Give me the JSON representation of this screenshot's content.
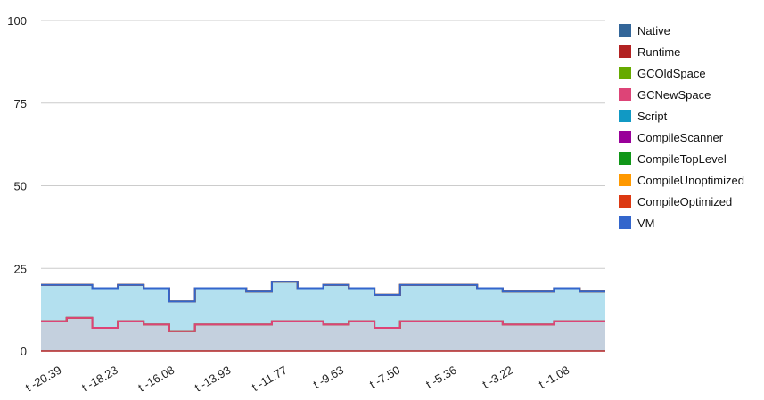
{
  "chart_data": {
    "type": "area",
    "stacked": true,
    "step": true,
    "y_ticks": [
      "100",
      "75",
      "50",
      "25",
      "0"
    ],
    "ylim": [
      0,
      100
    ],
    "x_tick_labels": [
      "t -20.39",
      "t -18.23",
      "t -16.08",
      "t -13.93",
      "t -11.77",
      "t -9.63",
      "t -7.50",
      "t -5.36",
      "t -3.22",
      "t -1.08"
    ],
    "grid": true,
    "legend_position": "right",
    "series": [
      {
        "name": "Native",
        "color": "#336699",
        "values": [
          9,
          10,
          7,
          9,
          8,
          6,
          8,
          8,
          8,
          9,
          9,
          8,
          9,
          7,
          9,
          9,
          9,
          9,
          8,
          8,
          9,
          9
        ]
      },
      {
        "name": "Runtime",
        "color": "#b22222",
        "values": [
          0,
          0,
          0,
          0,
          0,
          0,
          0,
          0,
          0,
          0,
          0,
          0,
          0,
          0,
          0,
          0,
          0,
          0,
          0,
          0,
          0,
          0
        ]
      },
      {
        "name": "GCOldSpace",
        "color": "#66aa00",
        "values": [
          0,
          0,
          0,
          0,
          0,
          0,
          0,
          0,
          0,
          0,
          0,
          0,
          0,
          0,
          0,
          0,
          0,
          0,
          0,
          0,
          0,
          0
        ]
      },
      {
        "name": "GCNewSpace",
        "color": "#dd4477",
        "values": [
          0,
          0,
          0,
          0,
          0,
          0,
          0,
          0,
          0,
          0,
          0,
          0,
          0,
          0,
          0,
          0,
          0,
          0,
          0,
          0,
          0,
          0
        ]
      },
      {
        "name": "Script",
        "color": "#1199c4",
        "values": [
          11,
          10,
          12,
          11,
          11,
          9,
          11,
          11,
          10,
          12,
          10,
          12,
          10,
          10,
          11,
          11,
          11,
          10,
          10,
          10,
          10,
          9
        ]
      },
      {
        "name": "CompileScanner",
        "color": "#990099",
        "values": [
          0,
          0,
          0,
          0,
          0,
          0,
          0,
          0,
          0,
          0,
          0,
          0,
          0,
          0,
          0,
          0,
          0,
          0,
          0,
          0,
          0,
          0
        ]
      },
      {
        "name": "CompileTopLevel",
        "color": "#109618",
        "values": [
          0,
          0,
          0,
          0,
          0,
          0,
          0,
          0,
          0,
          0,
          0,
          0,
          0,
          0,
          0,
          0,
          0,
          0,
          0,
          0,
          0,
          0
        ]
      },
      {
        "name": "CompileUnoptimized",
        "color": "#ff9900",
        "values": [
          0,
          0,
          0,
          0,
          0,
          0,
          0,
          0,
          0,
          0,
          0,
          0,
          0,
          0,
          0,
          0,
          0,
          0,
          0,
          0,
          0,
          0
        ]
      },
      {
        "name": "CompileOptimized",
        "color": "#dc3912",
        "values": [
          0,
          0,
          0,
          0,
          0,
          0,
          0,
          0,
          0,
          0,
          0,
          0,
          0,
          0,
          0,
          0,
          0,
          0,
          0,
          0,
          0,
          0
        ]
      },
      {
        "name": "VM",
        "color": "#3366cc",
        "values": [
          0,
          0,
          0,
          0,
          0,
          0,
          0,
          0,
          0,
          0,
          0,
          0,
          0,
          0,
          0,
          0,
          0,
          0,
          0,
          0,
          0,
          0
        ]
      }
    ]
  }
}
